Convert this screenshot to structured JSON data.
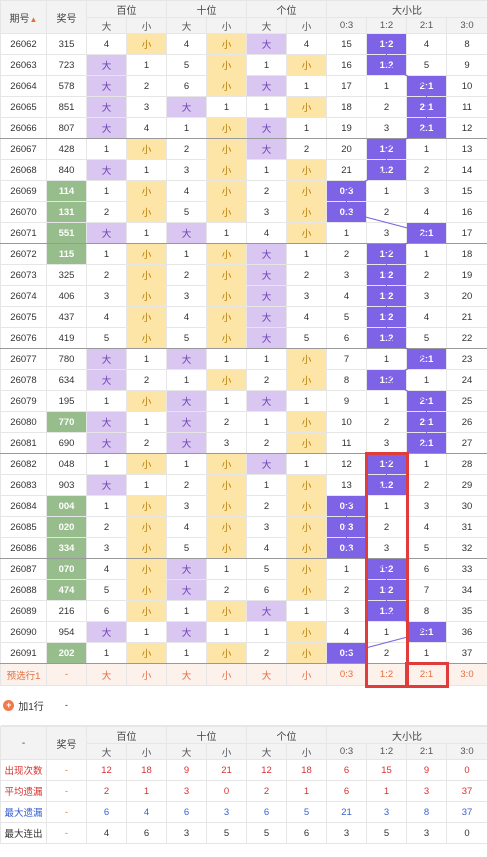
{
  "header": {
    "period_label": "期号",
    "sort_arrow": "▲",
    "prize_label": "奖号",
    "groups": [
      "百位",
      "十位",
      "个位",
      "大小比"
    ],
    "sub": [
      "大",
      "小",
      "大",
      "小",
      "大",
      "小",
      "0:3",
      "1:2",
      "2:1",
      "3:0"
    ]
  },
  "rows": [
    {
      "p": "26062",
      "n": "315",
      "h": "4",
      "hd": "小",
      "t": "4",
      "td": "小",
      "g": "大",
      "gd": "4",
      "r03": "15",
      "r12": "1:2",
      "r21": "4",
      "r30": "8",
      "hl": false,
      "rk": "12"
    },
    {
      "p": "26063",
      "n": "723",
      "h": "大",
      "hd": "1",
      "t": "5",
      "td": "小",
      "g": "1",
      "gd": "小",
      "r03": "16",
      "r12": "1:2",
      "r21": "5",
      "r30": "9",
      "hl": false,
      "rk": "12"
    },
    {
      "p": "26064",
      "n": "578",
      "h": "大",
      "hd": "2",
      "t": "6",
      "td": "小",
      "g": "大",
      "gd": "1",
      "r03": "17",
      "r12": "1",
      "r21": "2:1",
      "r30": "10",
      "hl": false,
      "rk": "21"
    },
    {
      "p": "26065",
      "n": "851",
      "h": "大",
      "hd": "3",
      "t": "大",
      "td": "1",
      "g": "1",
      "gd": "小",
      "r03": "18",
      "r12": "2",
      "r21": "2:1",
      "r30": "11",
      "hl": false,
      "rk": "21"
    },
    {
      "p": "26066",
      "n": "807",
      "h": "大",
      "hd": "4",
      "t": "1",
      "td": "小",
      "g": "大",
      "gd": "1",
      "r03": "19",
      "r12": "3",
      "r21": "2:1",
      "r30": "12",
      "hl": false,
      "rk": "21",
      "end": true
    },
    {
      "p": "26067",
      "n": "428",
      "h": "1",
      "hd": "小",
      "t": "2",
      "td": "小",
      "g": "大",
      "gd": "2",
      "r03": "20",
      "r12": "1:2",
      "r21": "1",
      "r30": "13",
      "hl": false,
      "rk": "12"
    },
    {
      "p": "26068",
      "n": "840",
      "h": "大",
      "hd": "1",
      "t": "3",
      "td": "小",
      "g": "1",
      "gd": "小",
      "r03": "21",
      "r12": "1:2",
      "r21": "2",
      "r30": "14",
      "hl": false,
      "rk": "12"
    },
    {
      "p": "26069",
      "n": "114",
      "h": "1",
      "hd": "小",
      "t": "4",
      "td": "小",
      "g": "2",
      "gd": "小",
      "r03": "0:3",
      "r12": "1",
      "r21": "3",
      "r30": "15",
      "hl": true,
      "rk": "03"
    },
    {
      "p": "26070",
      "n": "131",
      "h": "2",
      "hd": "小",
      "t": "5",
      "td": "小",
      "g": "3",
      "gd": "小",
      "r03": "0:3",
      "r12": "2",
      "r21": "4",
      "r30": "16",
      "hl": true,
      "rk": "03"
    },
    {
      "p": "26071",
      "n": "551",
      "h": "大",
      "hd": "1",
      "t": "大",
      "td": "1",
      "g": "4",
      "gd": "小",
      "r03": "1",
      "r12": "3",
      "r21": "2:1",
      "r30": "17",
      "hl": true,
      "rk": "21",
      "end": true
    },
    {
      "p": "26072",
      "n": "115",
      "h": "1",
      "hd": "小",
      "t": "1",
      "td": "小",
      "g": "大",
      "gd": "1",
      "r03": "2",
      "r12": "1:2",
      "r21": "1",
      "r30": "18",
      "hl": true,
      "rk": "12"
    },
    {
      "p": "26073",
      "n": "325",
      "h": "2",
      "hd": "小",
      "t": "2",
      "td": "小",
      "g": "大",
      "gd": "2",
      "r03": "3",
      "r12": "1:2",
      "r21": "2",
      "r30": "19",
      "hl": false,
      "rk": "12"
    },
    {
      "p": "26074",
      "n": "406",
      "h": "3",
      "hd": "小",
      "t": "3",
      "td": "小",
      "g": "大",
      "gd": "3",
      "r03": "4",
      "r12": "1:2",
      "r21": "3",
      "r30": "20",
      "hl": false,
      "rk": "12"
    },
    {
      "p": "26075",
      "n": "437",
      "h": "4",
      "hd": "小",
      "t": "4",
      "td": "小",
      "g": "大",
      "gd": "4",
      "r03": "5",
      "r12": "1:2",
      "r21": "4",
      "r30": "21",
      "hl": false,
      "rk": "12"
    },
    {
      "p": "26076",
      "n": "419",
      "h": "5",
      "hd": "小",
      "t": "5",
      "td": "小",
      "g": "大",
      "gd": "5",
      "r03": "6",
      "r12": "1:2",
      "r21": "5",
      "r30": "22",
      "hl": false,
      "rk": "12",
      "end": true
    },
    {
      "p": "26077",
      "n": "780",
      "h": "大",
      "hd": "1",
      "t": "大",
      "td": "1",
      "g": "1",
      "gd": "小",
      "r03": "7",
      "r12": "1",
      "r21": "2:1",
      "r30": "23",
      "hl": false,
      "rk": "21"
    },
    {
      "p": "26078",
      "n": "634",
      "h": "大",
      "hd": "2",
      "t": "1",
      "td": "小",
      "g": "2",
      "gd": "小",
      "r03": "8",
      "r12": "1:2",
      "r21": "1",
      "r30": "24",
      "hl": false,
      "rk": "12"
    },
    {
      "p": "26079",
      "n": "195",
      "h": "1",
      "hd": "小",
      "t": "大",
      "td": "1",
      "g": "大",
      "gd": "1",
      "r03": "9",
      "r12": "1",
      "r21": "2:1",
      "r30": "25",
      "hl": false,
      "rk": "21"
    },
    {
      "p": "26080",
      "n": "770",
      "h": "大",
      "hd": "1",
      "t": "大",
      "td": "2",
      "g": "1",
      "gd": "小",
      "r03": "10",
      "r12": "2",
      "r21": "2:1",
      "r30": "26",
      "hl": true,
      "rk": "21"
    },
    {
      "p": "26081",
      "n": "690",
      "h": "大",
      "hd": "2",
      "t": "大",
      "td": "3",
      "g": "2",
      "gd": "小",
      "r03": "11",
      "r12": "3",
      "r21": "2:1",
      "r30": "27",
      "hl": false,
      "rk": "21",
      "end": true
    },
    {
      "p": "26082",
      "n": "048",
      "h": "1",
      "hd": "小",
      "t": "1",
      "td": "小",
      "g": "大",
      "gd": "1",
      "r03": "12",
      "r12": "1:2",
      "r21": "1",
      "r30": "28",
      "hl": false,
      "rk": "12"
    },
    {
      "p": "26083",
      "n": "903",
      "h": "大",
      "hd": "1",
      "t": "2",
      "td": "小",
      "g": "1",
      "gd": "小",
      "r03": "13",
      "r12": "1:2",
      "r21": "2",
      "r30": "29",
      "hl": false,
      "rk": "12"
    },
    {
      "p": "26084",
      "n": "004",
      "h": "1",
      "hd": "小",
      "t": "3",
      "td": "小",
      "g": "2",
      "gd": "小",
      "r03": "0:3",
      "r12": "1",
      "r21": "3",
      "r30": "30",
      "hl": true,
      "rk": "03"
    },
    {
      "p": "26085",
      "n": "020",
      "h": "2",
      "hd": "小",
      "t": "4",
      "td": "小",
      "g": "3",
      "gd": "小",
      "r03": "0:3",
      "r12": "2",
      "r21": "4",
      "r30": "31",
      "hl": true,
      "rk": "03"
    },
    {
      "p": "26086",
      "n": "334",
      "h": "3",
      "hd": "小",
      "t": "5",
      "td": "小",
      "g": "4",
      "gd": "小",
      "r03": "0:3",
      "r12": "3",
      "r21": "5",
      "r30": "32",
      "hl": true,
      "rk": "03",
      "end": true
    },
    {
      "p": "26087",
      "n": "070",
      "h": "4",
      "hd": "小",
      "t": "大",
      "td": "1",
      "g": "5",
      "gd": "小",
      "r03": "1",
      "r12": "1:2",
      "r21": "6",
      "r30": "33",
      "hl": true,
      "rk": "12"
    },
    {
      "p": "26088",
      "n": "474",
      "h": "5",
      "hd": "小",
      "t": "大",
      "td": "2",
      "g": "6",
      "gd": "小",
      "r03": "2",
      "r12": "1:2",
      "r21": "7",
      "r30": "34",
      "hl": true,
      "rk": "12"
    },
    {
      "p": "26089",
      "n": "216",
      "h": "6",
      "hd": "小",
      "t": "1",
      "td": "小",
      "g": "大",
      "gd": "1",
      "r03": "3",
      "r12": "1:2",
      "r21": "8",
      "r30": "35",
      "hl": false,
      "rk": "12"
    },
    {
      "p": "26090",
      "n": "954",
      "h": "大",
      "hd": "1",
      "t": "大",
      "td": "1",
      "g": "1",
      "gd": "小",
      "r03": "4",
      "r12": "1",
      "r21": "2:1",
      "r30": "36",
      "hl": false,
      "rk": "21"
    },
    {
      "p": "26091",
      "n": "202",
      "h": "1",
      "hd": "小",
      "t": "1",
      "td": "小",
      "g": "2",
      "gd": "小",
      "r03": "0:3",
      "r12": "2",
      "r21": "1",
      "r30": "37",
      "hl": true,
      "rk": "03",
      "end": true
    }
  ],
  "preselect": {
    "label": "预选行1",
    "n": "-",
    "cells": [
      "大",
      "小",
      "大",
      "小",
      "大",
      "小",
      "0:3",
      "1:2",
      "2:1",
      "3:0"
    ]
  },
  "add": {
    "label": "加1行",
    "value": "-",
    "plus": "+"
  },
  "stats": [
    {
      "label": "出现次数",
      "n": "-",
      "v": [
        "12",
        "18",
        "9",
        "21",
        "12",
        "18",
        "6",
        "15",
        "9",
        "0"
      ],
      "cls": "red"
    },
    {
      "label": "平均遗漏",
      "n": "-",
      "v": [
        "2",
        "1",
        "3",
        "0",
        "2",
        "1",
        "6",
        "1",
        "3",
        "37"
      ],
      "cls": "red"
    },
    {
      "label": "最大遗漏",
      "n": "-",
      "v": [
        "6",
        "4",
        "6",
        "3",
        "6",
        "5",
        "21",
        "3",
        "8",
        "37"
      ],
      "cls": "blue"
    },
    {
      "label": "最大连出",
      "n": "-",
      "v": [
        "4",
        "6",
        "3",
        "5",
        "5",
        "6",
        "3",
        "5",
        "3",
        "0"
      ],
      "cls": "plain"
    }
  ],
  "bottom_header": {
    "dash": "-",
    "prize_label": "奖号"
  }
}
